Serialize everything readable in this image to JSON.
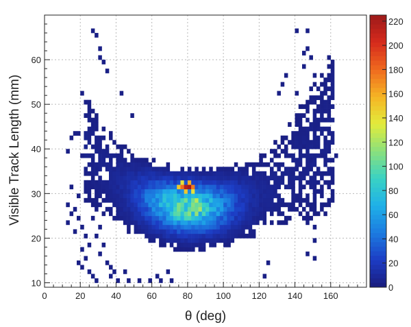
{
  "chart_data": {
    "type": "heatmap",
    "xlabel": "θ  (deg)",
    "ylabel": "Visible Track Length  (mm)",
    "xlim": [
      0,
      180
    ],
    "ylim": [
      9,
      70
    ],
    "x_ticks": [
      0,
      20,
      40,
      60,
      80,
      100,
      120,
      140,
      160
    ],
    "y_ticks": [
      10,
      20,
      30,
      40,
      50,
      60
    ],
    "bin_width_x": 2,
    "bin_width_y": 1,
    "grid": true,
    "colorbar": {
      "min": 0,
      "max": 225,
      "ticks": [
        0,
        20,
        40,
        60,
        80,
        100,
        120,
        140,
        160,
        180,
        200,
        220
      ],
      "colors": [
        "#1a1c7c",
        "#1c3cc4",
        "#1c7be0",
        "#1fb0e8",
        "#39d2c4",
        "#8be07c",
        "#e2ec3c",
        "#f6b424",
        "#ef6a1e",
        "#d62a1c",
        "#9c1a1a"
      ]
    },
    "peak": {
      "x": 80,
      "y": 31,
      "count": 222
    },
    "core": [
      {
        "x": 74,
        "y": 31,
        "count": 150
      },
      {
        "x": 76,
        "y": 31,
        "count": 180
      },
      {
        "x": 78,
        "y": 31,
        "count": 215
      },
      {
        "x": 82,
        "y": 31,
        "count": 175
      },
      {
        "x": 76,
        "y": 32,
        "count": 140
      },
      {
        "x": 80,
        "y": 32,
        "count": 160
      },
      {
        "x": 78,
        "y": 30,
        "count": 150
      },
      {
        "x": 82,
        "y": 30,
        "count": 140
      },
      {
        "x": 84,
        "y": 28,
        "count": 125
      },
      {
        "x": 86,
        "y": 26,
        "count": 120
      },
      {
        "x": 84,
        "y": 25,
        "count": 115
      }
    ],
    "outliers": [
      {
        "x": 26,
        "y": 66,
        "count": 3
      },
      {
        "x": 28,
        "y": 65,
        "count": 3
      },
      {
        "x": 30,
        "y": 62,
        "count": 3
      },
      {
        "x": 30,
        "y": 60,
        "count": 3
      },
      {
        "x": 34,
        "y": 57,
        "count": 3
      },
      {
        "x": 32,
        "y": 59,
        "count": 3
      },
      {
        "x": 140,
        "y": 66,
        "count": 3
      },
      {
        "x": 146,
        "y": 66,
        "count": 3
      },
      {
        "x": 146,
        "y": 62,
        "count": 3
      },
      {
        "x": 148,
        "y": 60,
        "count": 3
      },
      {
        "x": 144,
        "y": 61,
        "count": 3
      },
      {
        "x": 144,
        "y": 58,
        "count": 3
      },
      {
        "x": 150,
        "y": 56,
        "count": 3
      },
      {
        "x": 132,
        "y": 54,
        "count": 3
      },
      {
        "x": 134,
        "y": 56,
        "count": 3
      },
      {
        "x": 140,
        "y": 52,
        "count": 3
      },
      {
        "x": 130,
        "y": 52,
        "count": 3
      },
      {
        "x": 20,
        "y": 52,
        "count": 3
      },
      {
        "x": 22,
        "y": 50,
        "count": 3
      },
      {
        "x": 42,
        "y": 52,
        "count": 3
      },
      {
        "x": 48,
        "y": 47,
        "count": 3
      },
      {
        "x": 16,
        "y": 43,
        "count": 3
      },
      {
        "x": 18,
        "y": 43,
        "count": 3
      },
      {
        "x": 14,
        "y": 42,
        "count": 3
      },
      {
        "x": 22,
        "y": 40,
        "count": 3
      },
      {
        "x": 20,
        "y": 38,
        "count": 3
      },
      {
        "x": 12,
        "y": 39,
        "count": 3
      },
      {
        "x": 24,
        "y": 36,
        "count": 3
      },
      {
        "x": 22,
        "y": 34,
        "count": 3
      },
      {
        "x": 24,
        "y": 32,
        "count": 3
      },
      {
        "x": 14,
        "y": 31,
        "count": 3
      },
      {
        "x": 18,
        "y": 29,
        "count": 3
      },
      {
        "x": 12,
        "y": 27,
        "count": 3
      },
      {
        "x": 16,
        "y": 26,
        "count": 3
      },
      {
        "x": 14,
        "y": 25,
        "count": 3
      },
      {
        "x": 18,
        "y": 24,
        "count": 3
      },
      {
        "x": 12,
        "y": 23,
        "count": 3
      },
      {
        "x": 20,
        "y": 22,
        "count": 3
      },
      {
        "x": 16,
        "y": 21,
        "count": 3
      },
      {
        "x": 22,
        "y": 20,
        "count": 3
      },
      {
        "x": 24,
        "y": 18,
        "count": 3
      },
      {
        "x": 20,
        "y": 17,
        "count": 3
      },
      {
        "x": 22,
        "y": 15,
        "count": 3
      },
      {
        "x": 18,
        "y": 14,
        "count": 3
      },
      {
        "x": 20,
        "y": 13,
        "count": 3
      },
      {
        "x": 24,
        "y": 12,
        "count": 3
      },
      {
        "x": 26,
        "y": 11,
        "count": 3
      },
      {
        "x": 28,
        "y": 10,
        "count": 3
      },
      {
        "x": 36,
        "y": 11,
        "count": 3
      },
      {
        "x": 40,
        "y": 10,
        "count": 3
      },
      {
        "x": 46,
        "y": 10,
        "count": 3
      },
      {
        "x": 52,
        "y": 10,
        "count": 3
      },
      {
        "x": 58,
        "y": 10,
        "count": 3
      },
      {
        "x": 64,
        "y": 10,
        "count": 3
      },
      {
        "x": 70,
        "y": 10,
        "count": 3
      },
      {
        "x": 62,
        "y": 11,
        "count": 3
      },
      {
        "x": 68,
        "y": 12,
        "count": 3
      },
      {
        "x": 122,
        "y": 11,
        "count": 3
      },
      {
        "x": 124,
        "y": 14,
        "count": 3
      },
      {
        "x": 146,
        "y": 16,
        "count": 3
      },
      {
        "x": 150,
        "y": 15,
        "count": 3
      },
      {
        "x": 150,
        "y": 19,
        "count": 3
      },
      {
        "x": 150,
        "y": 22,
        "count": 3
      },
      {
        "x": 150,
        "y": 26,
        "count": 3
      },
      {
        "x": 154,
        "y": 38,
        "count": 3
      },
      {
        "x": 160,
        "y": 37,
        "count": 3
      },
      {
        "x": 158,
        "y": 37,
        "count": 3
      },
      {
        "x": 148,
        "y": 37,
        "count": 3
      },
      {
        "x": 146,
        "y": 24,
        "count": 3
      },
      {
        "x": 152,
        "y": 42,
        "count": 3
      },
      {
        "x": 148,
        "y": 44,
        "count": 3
      },
      {
        "x": 140,
        "y": 42,
        "count": 3
      },
      {
        "x": 144,
        "y": 40,
        "count": 3
      },
      {
        "x": 152,
        "y": 35,
        "count": 3
      },
      {
        "x": 154,
        "y": 33,
        "count": 3
      },
      {
        "x": 146,
        "y": 23,
        "count": 3
      },
      {
        "x": 162,
        "y": 38,
        "count": 3
      },
      {
        "x": 28,
        "y": 26,
        "count": 3
      },
      {
        "x": 26,
        "y": 24,
        "count": 3
      },
      {
        "x": 30,
        "y": 22,
        "count": 3
      },
      {
        "x": 28,
        "y": 20,
        "count": 3
      },
      {
        "x": 32,
        "y": 18,
        "count": 3
      },
      {
        "x": 30,
        "y": 16,
        "count": 3
      },
      {
        "x": 34,
        "y": 14,
        "count": 3
      },
      {
        "x": 36,
        "y": 13,
        "count": 3
      },
      {
        "x": 38,
        "y": 12,
        "count": 3
      },
      {
        "x": 44,
        "y": 12,
        "count": 3
      },
      {
        "x": 26,
        "y": 28,
        "count": 3
      },
      {
        "x": 24,
        "y": 30,
        "count": 3
      },
      {
        "x": 28,
        "y": 30,
        "count": 3
      }
    ]
  }
}
